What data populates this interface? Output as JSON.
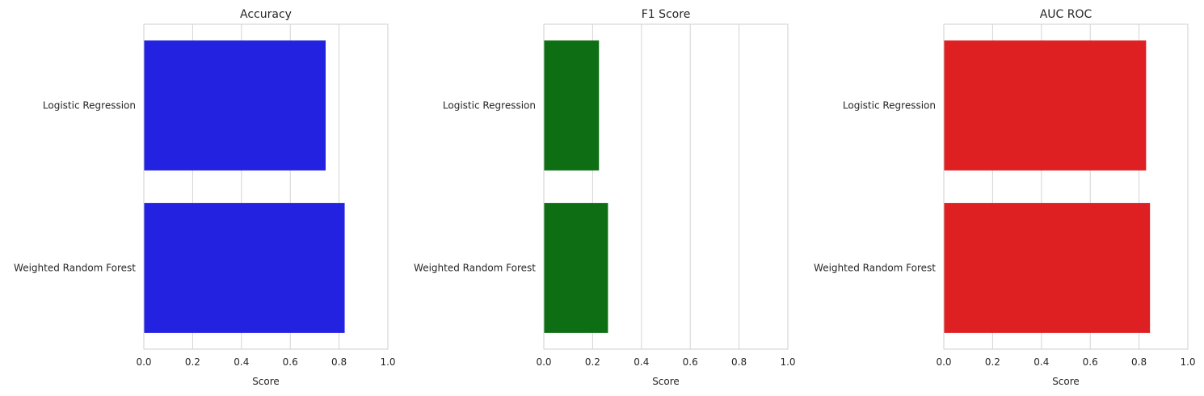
{
  "chart_data": [
    {
      "type": "bar",
      "orientation": "horizontal",
      "title": "Accuracy",
      "xlabel": "Score",
      "ylabel": "",
      "categories": [
        "Logistic Regression",
        "Weighted Random Forest"
      ],
      "values": [
        0.745,
        0.823
      ],
      "xlim": [
        0,
        1
      ],
      "xticks": [
        "0.0",
        "0.2",
        "0.4",
        "0.6",
        "0.8",
        "1.0"
      ],
      "color": "#2222e0",
      "grid": true
    },
    {
      "type": "bar",
      "orientation": "horizontal",
      "title": "F1 Score",
      "xlabel": "Score",
      "ylabel": "",
      "categories": [
        "Logistic Regression",
        "Weighted Random Forest"
      ],
      "values": [
        0.226,
        0.263
      ],
      "xlim": [
        0,
        1
      ],
      "xticks": [
        "0.0",
        "0.2",
        "0.4",
        "0.6",
        "0.8",
        "1.0"
      ],
      "color": "#0e6e13",
      "grid": true
    },
    {
      "type": "bar",
      "orientation": "horizontal",
      "title": "AUC ROC",
      "xlabel": "Score",
      "ylabel": "",
      "categories": [
        "Logistic Regression",
        "Weighted Random Forest"
      ],
      "values": [
        0.829,
        0.845
      ],
      "xlim": [
        0,
        1
      ],
      "xticks": [
        "0.0",
        "0.2",
        "0.4",
        "0.6",
        "0.8",
        "1.0"
      ],
      "color": "#df2022",
      "grid": true
    }
  ]
}
